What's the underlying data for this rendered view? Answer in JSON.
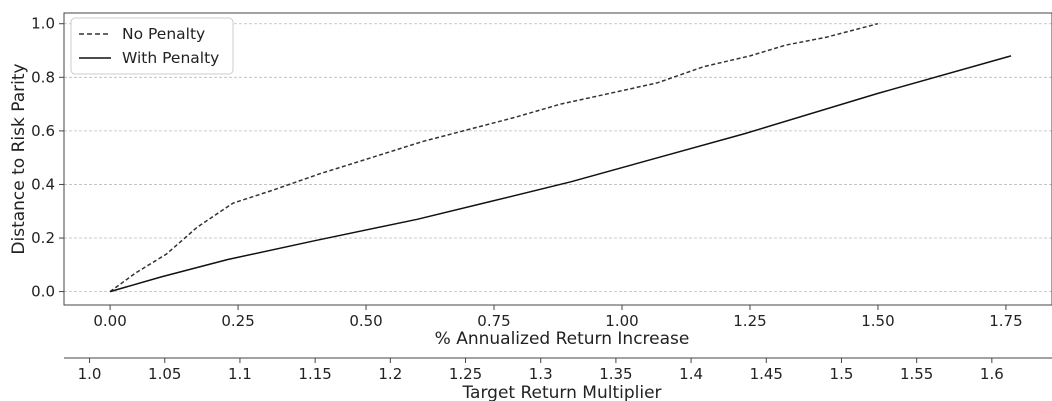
{
  "chart_data": {
    "type": "line",
    "xlabel": "% Annualized Return Increase",
    "ylabel": "Distance to Risk Parity",
    "xlim": [
      -0.09,
      1.84
    ],
    "ylim": [
      -0.05,
      1.04
    ],
    "xticks": [
      0.0,
      0.25,
      0.5,
      0.75,
      1.0,
      1.25,
      1.5,
      1.75
    ],
    "xtick_labels": [
      "0.00",
      "0.25",
      "0.50",
      "0.75",
      "1.00",
      "1.25",
      "1.50",
      "1.75"
    ],
    "yticks": [
      0.0,
      0.2,
      0.4,
      0.6,
      0.8,
      1.0
    ],
    "ytick_labels": [
      "0.0",
      "0.2",
      "0.4",
      "0.6",
      "0.8",
      "1.0"
    ],
    "grid": "horizontal dashed",
    "legend_position": "top-left",
    "series": [
      {
        "name": "No Penalty",
        "style": "dashed",
        "color": "#333333",
        "x": [
          0.0,
          0.05,
          0.11,
          0.17,
          0.24,
          0.32,
          0.41,
          0.51,
          0.61,
          0.73,
          0.79,
          0.88,
          1.0,
          1.07,
          1.16,
          1.25,
          1.32,
          1.4,
          1.5
        ],
        "y": [
          0.0,
          0.07,
          0.14,
          0.24,
          0.33,
          0.38,
          0.44,
          0.5,
          0.56,
          0.62,
          0.65,
          0.7,
          0.75,
          0.78,
          0.84,
          0.88,
          0.92,
          0.95,
          1.0
        ]
      },
      {
        "name": "With Penalty",
        "style": "solid",
        "color": "#111111",
        "x": [
          0.0,
          0.1,
          0.23,
          0.4,
          0.6,
          0.74,
          0.9,
          1.07,
          1.24,
          1.5,
          1.76
        ],
        "y": [
          0.0,
          0.055,
          0.12,
          0.19,
          0.27,
          0.335,
          0.41,
          0.5,
          0.59,
          0.74,
          0.88
        ]
      }
    ],
    "secondary_x_axis": {
      "label": "Target Return Multiplier",
      "ticks": [
        1.0,
        1.05,
        1.1,
        1.15,
        1.2,
        1.25,
        1.3,
        1.35,
        1.4,
        1.45,
        1.5,
        1.55,
        1.6
      ],
      "tick_labels": [
        "1.0",
        "1.05",
        "1.1",
        "1.15",
        "1.2",
        "1.25",
        "1.3",
        "1.35",
        "1.4",
        "1.45",
        "1.5",
        "1.55",
        "1.6"
      ],
      "range": [
        0.983,
        1.64
      ]
    }
  }
}
